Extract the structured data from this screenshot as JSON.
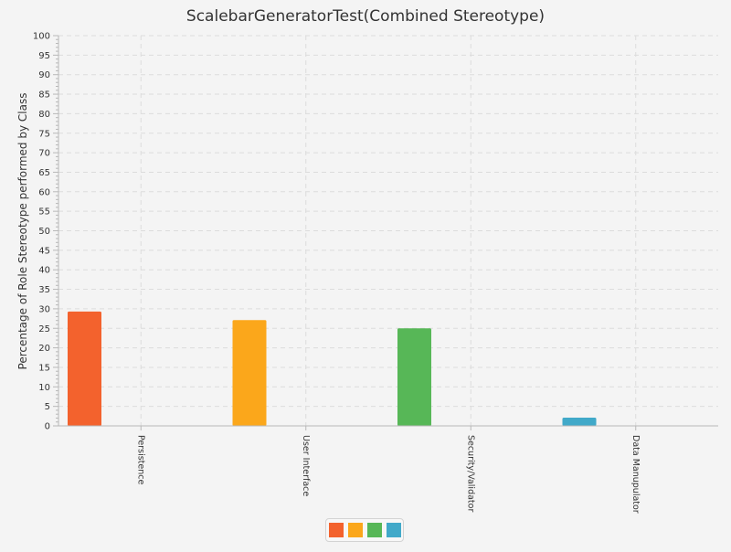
{
  "chart_data": {
    "type": "bar",
    "title": "ScalebarGeneratorTest(Combined Stereotype)",
    "ylabel": "Percentage of Role Stereotype performed by Class",
    "xlabel": "",
    "ylim": [
      0,
      100
    ],
    "ytick_step": 5,
    "ytick_labels": [
      "0",
      "5",
      "10",
      "15",
      "20",
      "25",
      "30",
      "35",
      "40",
      "45",
      "50",
      "55",
      "60",
      "65",
      "70",
      "75",
      "80",
      "85",
      "90",
      "95",
      "100"
    ],
    "grid": true,
    "categories": [
      "Persistence",
      "User Interface",
      "Security/Validator",
      "Data Manupulator"
    ],
    "values": [
      29.3,
      27.1,
      25.0,
      2.1
    ],
    "colors": [
      "#f3622d",
      "#fba71b",
      "#57b757",
      "#41a9c9"
    ],
    "legend": {
      "placement": "bottom-center",
      "entries": [
        "",
        "",
        "",
        ""
      ],
      "colors": [
        "#f3622d",
        "#fba71b",
        "#57b757",
        "#41a9c9"
      ]
    }
  }
}
